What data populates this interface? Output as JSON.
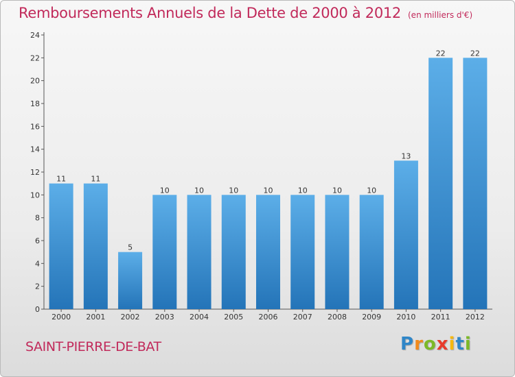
{
  "header": {
    "title": "Remboursements Annuels de la Dette de 2000 à 2012",
    "unit": "(en milliers d'€)"
  },
  "footer": {
    "commune": "SAINT-PIERRE-DE-BAT",
    "logo_letters": [
      "P",
      "r",
      "o",
      "x",
      "i",
      "t",
      "i"
    ]
  },
  "colors": {
    "title": "#c1295a",
    "bar_top": "#5caee8",
    "bar_bottom": "#2474b8"
  },
  "chart_data": {
    "type": "bar",
    "title": "Remboursements Annuels de la Dette de 2000 à 2012",
    "xlabel": "",
    "ylabel": "",
    "categories": [
      "2000",
      "2001",
      "2002",
      "2003",
      "2004",
      "2005",
      "2006",
      "2007",
      "2008",
      "2009",
      "2010",
      "2011",
      "2012"
    ],
    "values": [
      11,
      11,
      5,
      10,
      10,
      10,
      10,
      10,
      10,
      10,
      13,
      22,
      22
    ],
    "ylim": [
      0,
      24
    ],
    "yticks": [
      0,
      2,
      4,
      6,
      8,
      10,
      12,
      14,
      16,
      18,
      20,
      22,
      24
    ],
    "grid": false,
    "legend": "none"
  }
}
